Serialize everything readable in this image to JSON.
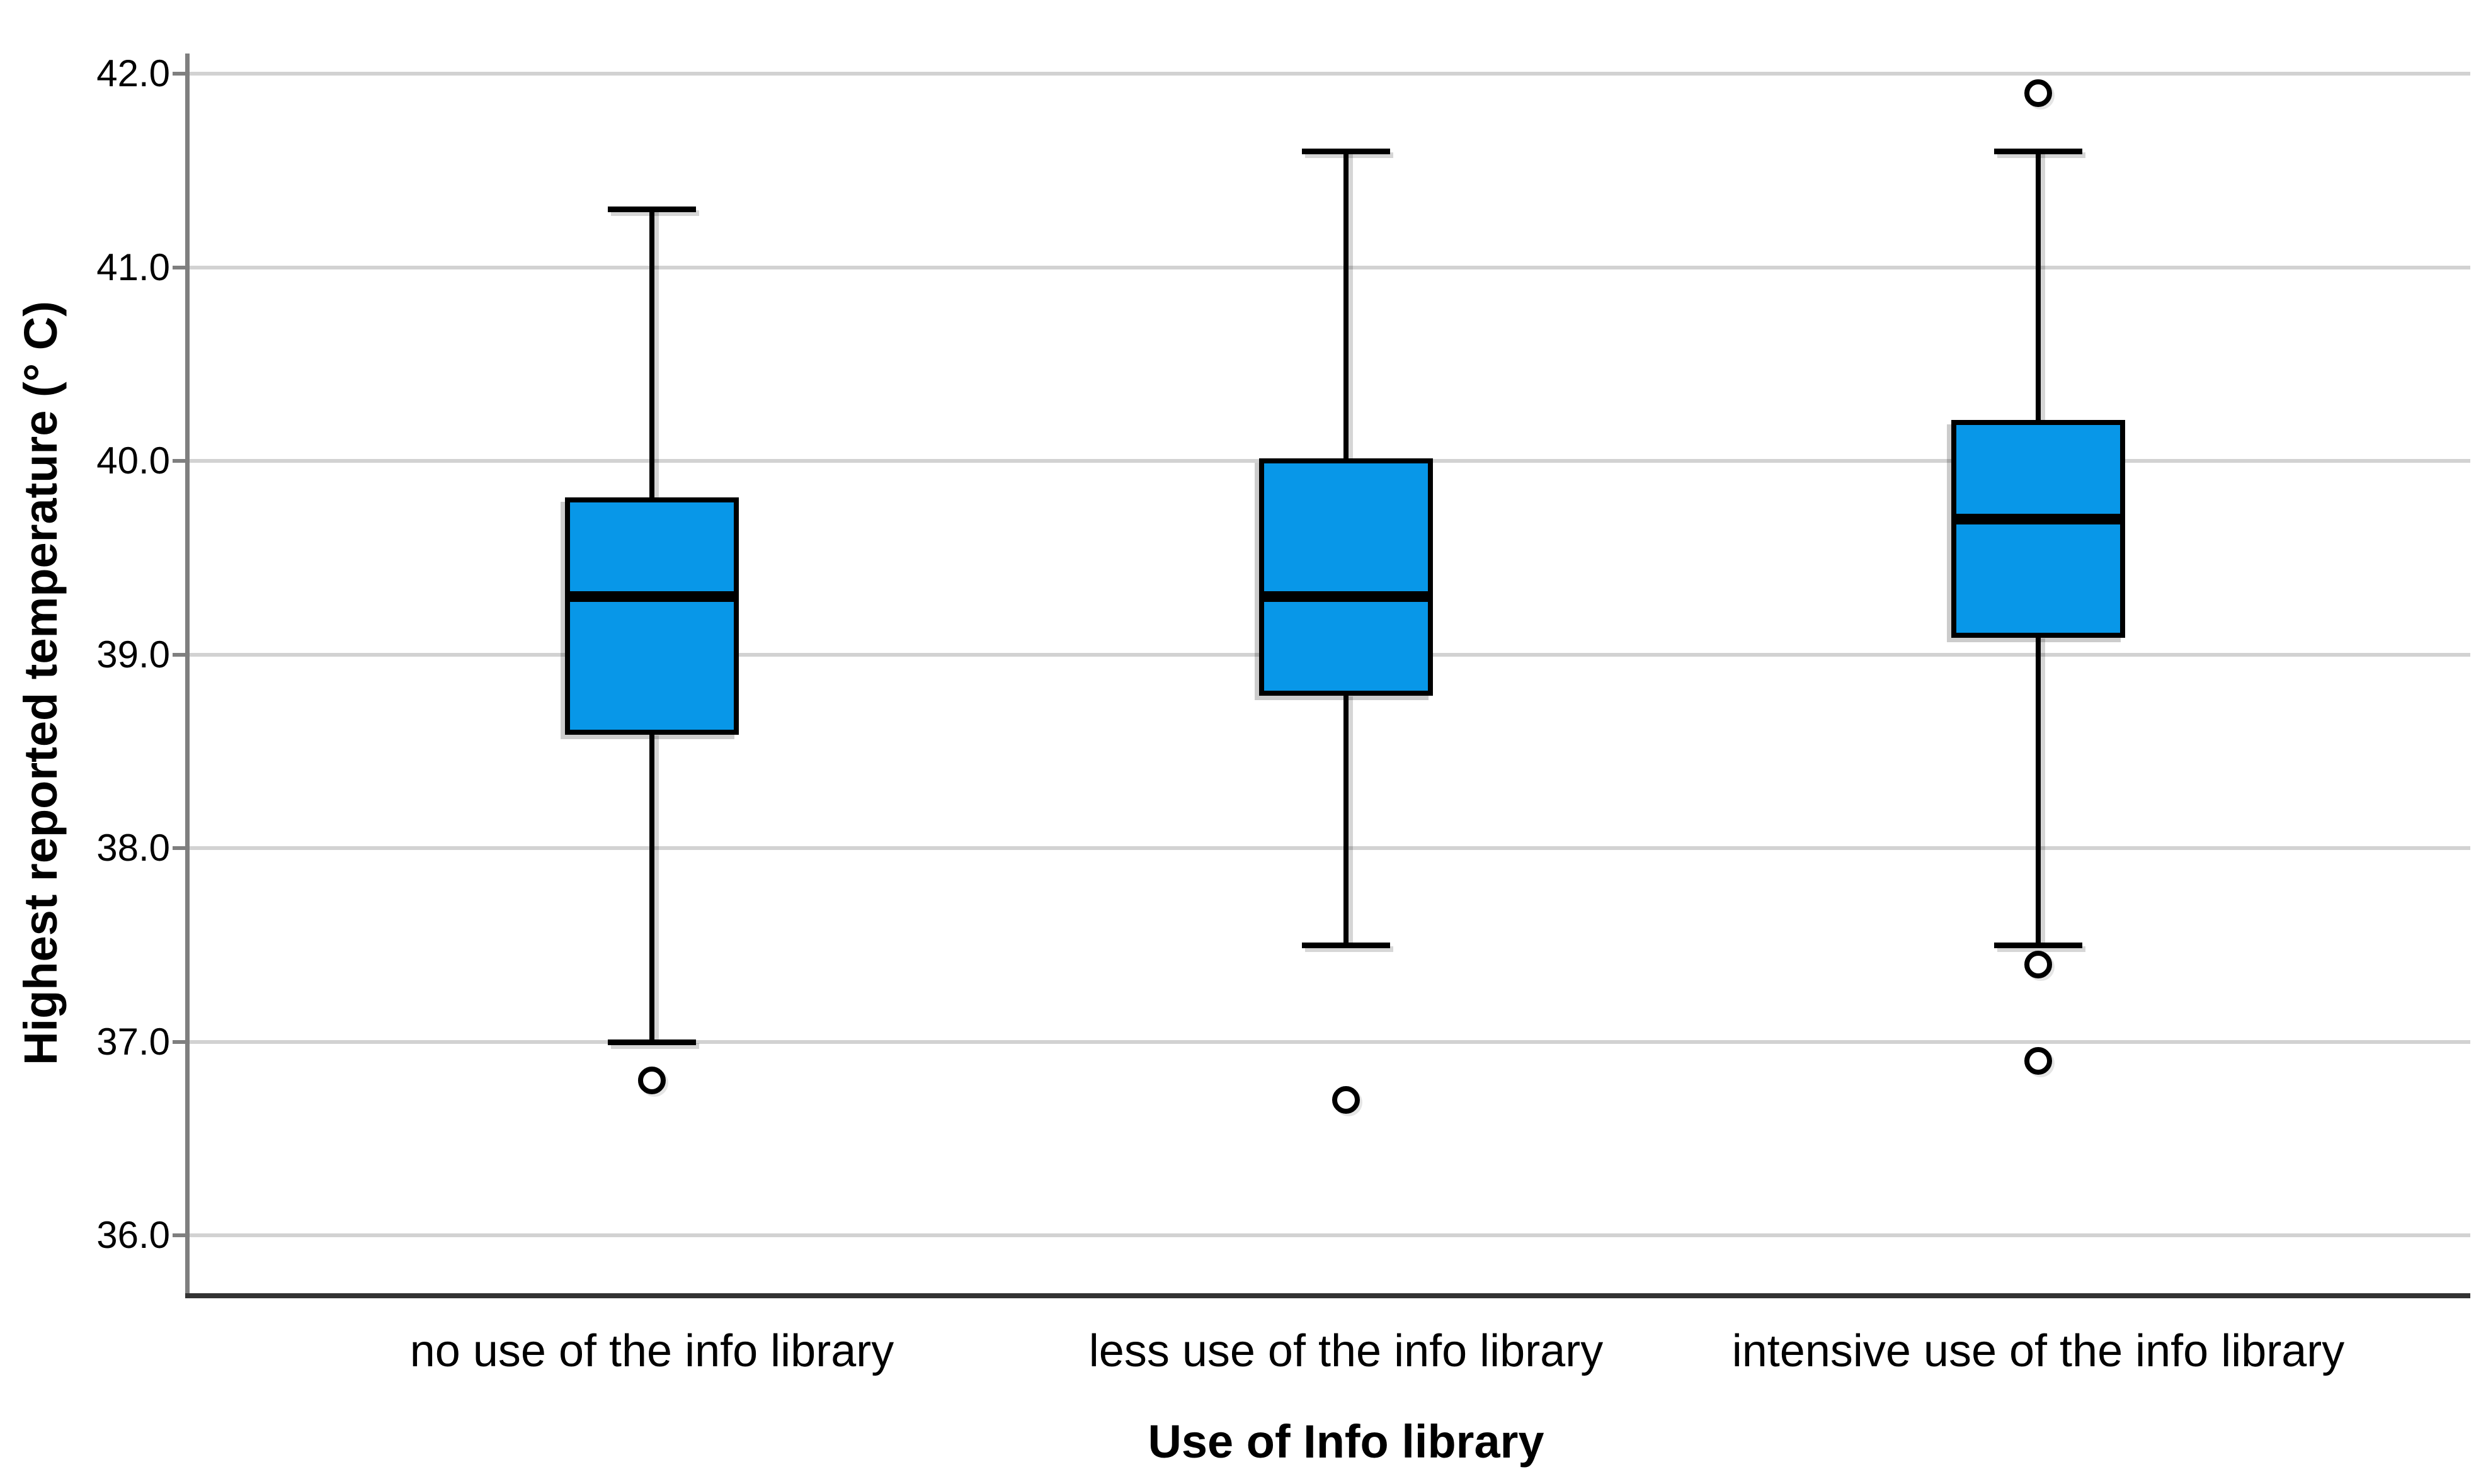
{
  "chart_data": {
    "type": "boxplot",
    "title": "",
    "xlabel": "Use of Info library",
    "ylabel": "Highest reported temperature (° C)",
    "ylim": [
      35.7,
      42.1
    ],
    "grid": "horizontal-only",
    "legend": "none",
    "categories": [
      "no use of the info library",
      "less use of the info library",
      "intensive use of the info library"
    ],
    "yticks": [
      {
        "value": 42.0,
        "label": "42.0"
      },
      {
        "value": 41.0,
        "label": "41.0"
      },
      {
        "value": 40.0,
        "label": "40.0"
      },
      {
        "value": 39.0,
        "label": "39.0"
      },
      {
        "value": 38.0,
        "label": "38.0"
      },
      {
        "value": 37.0,
        "label": "37.0"
      },
      {
        "value": 36.0,
        "label": "36.0"
      }
    ],
    "boxes": [
      {
        "category": "no use of the info library",
        "whisker_low": 37.0,
        "q1": 38.6,
        "median": 39.3,
        "q3": 39.8,
        "whisker_high": 41.3,
        "outliers": [
          36.8
        ]
      },
      {
        "category": "less use of the info library",
        "whisker_low": 37.5,
        "q1": 38.8,
        "median": 39.3,
        "q3": 40.0,
        "whisker_high": 41.6,
        "outliers": [
          36.7
        ]
      },
      {
        "category": "intensive use of the info library",
        "whisker_low": 37.5,
        "q1": 39.1,
        "median": 39.7,
        "q3": 40.2,
        "whisker_high": 41.6,
        "outliers": [
          41.9,
          37.4,
          36.9
        ]
      }
    ],
    "colors": {
      "box_fill": "#0897E8",
      "box_border": "#000000",
      "median": "#000000",
      "whisker": "#000000",
      "outlier_fill": "#FFFFFF",
      "gridline": "#D2D2D2",
      "axis_left": "#7F7F7F",
      "axis_bottom": "#333333",
      "text": "#000000"
    }
  }
}
